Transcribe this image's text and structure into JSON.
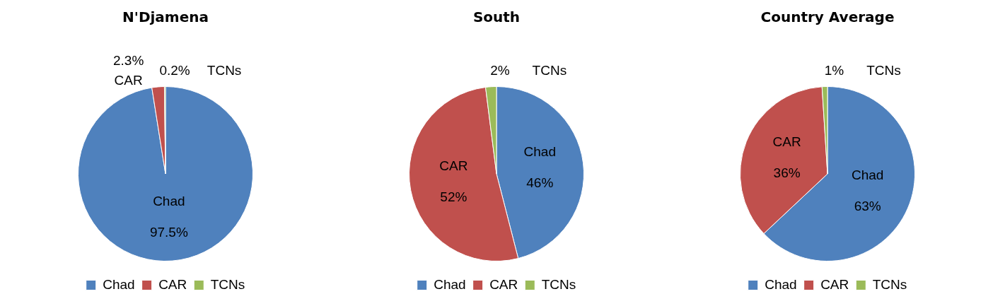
{
  "chart_data": [
    {
      "type": "pie",
      "title": "N'Djamena",
      "categories": [
        "Chad",
        "CAR",
        "TCNs"
      ],
      "values": [
        97.5,
        2.3,
        0.2
      ],
      "colors": [
        "#4f81bd",
        "#c0504d",
        "#9bbb59"
      ],
      "value_labels": [
        "97.5%",
        "2.3%",
        "0.2%"
      ],
      "legend": "bottom"
    },
    {
      "type": "pie",
      "title": "South",
      "categories": [
        "Chad",
        "CAR",
        "TCNs"
      ],
      "values": [
        46,
        52,
        2
      ],
      "colors": [
        "#4f81bd",
        "#c0504d",
        "#9bbb59"
      ],
      "value_labels": [
        "46%",
        "52%",
        "2%"
      ],
      "legend": "bottom"
    },
    {
      "type": "pie",
      "title": "Country Average",
      "categories": [
        "Chad",
        "CAR",
        "TCNs"
      ],
      "values": [
        63,
        36,
        1
      ],
      "colors": [
        "#4f81bd",
        "#c0504d",
        "#9bbb59"
      ],
      "value_labels": [
        "63%",
        "36%",
        "1%"
      ],
      "legend": "bottom"
    }
  ]
}
